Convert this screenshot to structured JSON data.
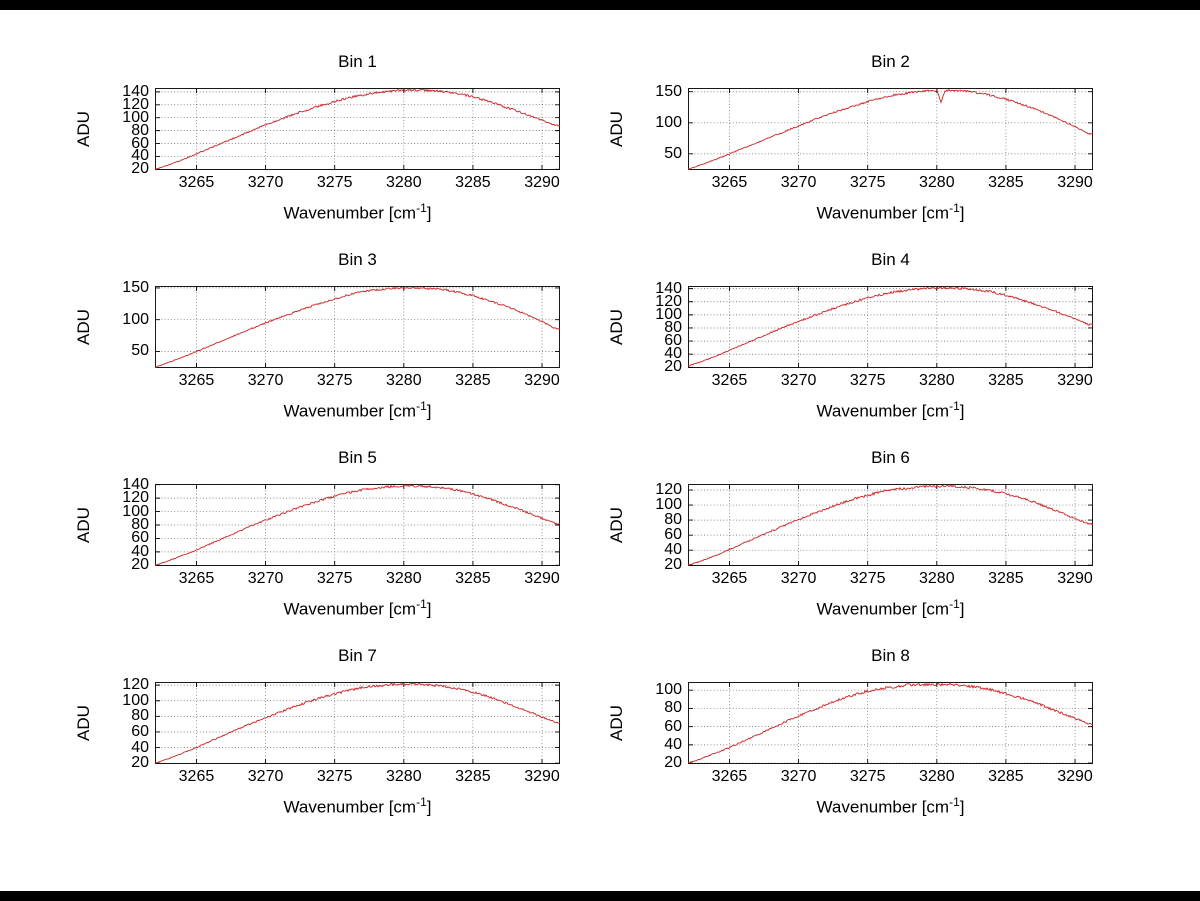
{
  "figure": {
    "background": "#ffffff",
    "frame_color": "#000000",
    "axis": {
      "ylabel": "ADU",
      "xlabel_base": "Wavenumber [cm",
      "xlabel_sup": "-1",
      "xlabel_close": "]",
      "xtick_labels": [
        "3265",
        "3270",
        "3275",
        "3280",
        "3285",
        "3290"
      ],
      "xtick_values": [
        3265,
        3270,
        3275,
        3280,
        3285,
        3290
      ],
      "xlim": [
        3262,
        3291.3
      ],
      "grid_style": "dotted",
      "grid_color": "#555555",
      "line_color": "#cc2222"
    }
  },
  "chart_data": [
    {
      "type": "line",
      "title": "Bin 1",
      "xlabel": "Wavenumber [cm⁻¹]",
      "ylabel": "ADU",
      "x_start": 3262,
      "x_step": 1,
      "x_end": 3291,
      "y": [
        20,
        27,
        35,
        44,
        53,
        62,
        71,
        80,
        89,
        97,
        105,
        112,
        119,
        125,
        131,
        135,
        139,
        141,
        143,
        143,
        142,
        140,
        137,
        132,
        126,
        119,
        112,
        104,
        96,
        88
      ],
      "yticks": [
        20,
        40,
        60,
        80,
        100,
        120,
        140
      ],
      "ylim": [
        19,
        146
      ],
      "noise": 1.4
    },
    {
      "type": "line",
      "title": "Bin 2",
      "xlabel": "Wavenumber [cm⁻¹]",
      "ylabel": "ADU",
      "x_start": 3262,
      "x_step": 1,
      "x_end": 3291,
      "y": [
        25,
        33,
        41,
        50,
        59,
        68,
        77,
        86,
        95,
        104,
        112,
        120,
        127,
        134,
        140,
        145,
        148,
        151,
        152,
        152,
        151,
        148,
        144,
        138,
        131,
        123,
        114,
        104,
        94,
        82
      ],
      "yticks": [
        50,
        100,
        150
      ],
      "ylim": [
        24,
        156
      ],
      "noise": 1.3,
      "dip": {
        "x": 3280.3,
        "depth": 20,
        "width": 0.28
      }
    },
    {
      "type": "line",
      "title": "Bin 3",
      "xlabel": "Wavenumber [cm⁻¹]",
      "ylabel": "ADU",
      "x_start": 3262,
      "x_step": 1,
      "x_end": 3291,
      "y": [
        25,
        33,
        41,
        50,
        59,
        68,
        77,
        86,
        95,
        103,
        111,
        119,
        126,
        133,
        139,
        144,
        147,
        149,
        150,
        150,
        149,
        147,
        143,
        138,
        131,
        124,
        116,
        107,
        97,
        86
      ],
      "yticks": [
        50,
        100,
        150
      ],
      "ylim": [
        24,
        153
      ],
      "noise": 1.2
    },
    {
      "type": "line",
      "title": "Bin 4",
      "xlabel": "Wavenumber [cm⁻¹]",
      "ylabel": "ADU",
      "x_start": 3262,
      "x_step": 1,
      "x_end": 3291,
      "y": [
        22,
        29,
        37,
        46,
        55,
        64,
        73,
        82,
        90,
        98,
        106,
        113,
        120,
        126,
        131,
        135,
        138,
        140,
        141,
        141,
        140,
        138,
        135,
        130,
        124,
        117,
        110,
        102,
        94,
        85
      ],
      "yticks": [
        20,
        40,
        60,
        80,
        100,
        120,
        140
      ],
      "ylim": [
        19,
        144
      ],
      "noise": 1.4
    },
    {
      "type": "line",
      "title": "Bin 5",
      "xlabel": "Wavenumber [cm⁻¹]",
      "ylabel": "ADU",
      "x_start": 3262,
      "x_step": 1,
      "x_end": 3291,
      "y": [
        20,
        27,
        35,
        43,
        52,
        61,
        70,
        79,
        87,
        95,
        103,
        110,
        117,
        123,
        128,
        132,
        135,
        137,
        138,
        138,
        137,
        135,
        131,
        126,
        120,
        113,
        106,
        98,
        90,
        82
      ],
      "yticks": [
        20,
        40,
        60,
        80,
        100,
        120,
        140
      ],
      "ylim": [
        19,
        141
      ],
      "noise": 1.3
    },
    {
      "type": "line",
      "title": "Bin 6",
      "xlabel": "Wavenumber [cm⁻¹]",
      "ylabel": "ADU",
      "x_start": 3262,
      "x_step": 1,
      "x_end": 3291,
      "y": [
        20,
        26,
        33,
        41,
        49,
        57,
        65,
        73,
        81,
        88,
        95,
        102,
        108,
        113,
        118,
        121,
        123,
        125,
        125,
        125,
        124,
        122,
        119,
        115,
        110,
        104,
        97,
        90,
        82,
        75
      ],
      "yticks": [
        20,
        40,
        60,
        80,
        100,
        120
      ],
      "ylim": [
        19,
        128
      ],
      "noise": 1.3
    },
    {
      "type": "line",
      "title": "Bin 7",
      "xlabel": "Wavenumber [cm⁻¹]",
      "ylabel": "ADU",
      "x_start": 3262,
      "x_step": 1,
      "x_end": 3291,
      "y": [
        20,
        26,
        33,
        40,
        48,
        56,
        64,
        71,
        78,
        85,
        92,
        98,
        104,
        109,
        113,
        117,
        119,
        121,
        121,
        121,
        120,
        118,
        115,
        111,
        106,
        100,
        93,
        86,
        79,
        72
      ],
      "yticks": [
        20,
        40,
        60,
        80,
        100,
        120
      ],
      "ylim": [
        19,
        124
      ],
      "noise": 1.2
    },
    {
      "type": "line",
      "title": "Bin 8",
      "xlabel": "Wavenumber [cm⁻¹]",
      "ylabel": "ADU",
      "x_start": 3262,
      "x_step": 1,
      "x_end": 3291,
      "y": [
        20,
        25,
        31,
        37,
        44,
        51,
        58,
        65,
        72,
        78,
        84,
        90,
        95,
        99,
        102,
        104,
        106,
        106,
        106,
        106,
        105,
        103,
        100,
        96,
        92,
        87,
        81,
        75,
        69,
        63
      ],
      "yticks": [
        20,
        40,
        60,
        80,
        100
      ],
      "ylim": [
        19,
        109
      ],
      "noise": 1.2
    }
  ]
}
